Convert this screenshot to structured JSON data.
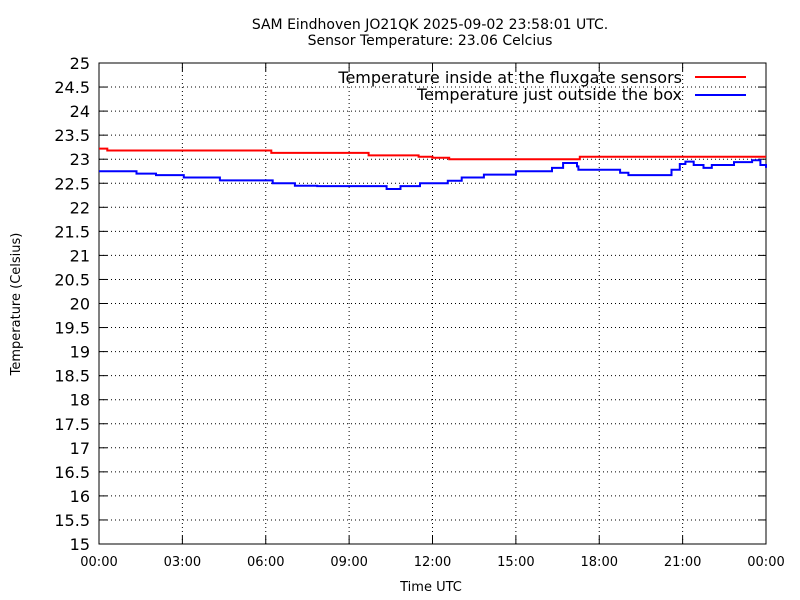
{
  "chart_data": {
    "type": "line",
    "title": "SAM Eindhoven JO21QK 2025-09-02 23:58:01 UTC.",
    "subtitle": "Sensor Temperature: 23.06 Celcius",
    "xlabel": "Time UTC",
    "ylabel": "Temperature (Celsius)",
    "x_unit": "hours UTC",
    "xlim": [
      0,
      24
    ],
    "ylim": [
      15,
      25
    ],
    "grid": true,
    "legend_position": "top-right",
    "x_ticks": [
      0,
      3,
      6,
      9,
      12,
      15,
      18,
      21,
      24
    ],
    "x_tick_labels": [
      "00:00",
      "03:00",
      "06:00",
      "09:00",
      "12:00",
      "15:00",
      "18:00",
      "21:00",
      "00:00"
    ],
    "y_ticks": [
      15,
      15.5,
      16,
      16.5,
      17,
      17.5,
      18,
      18.5,
      19,
      19.5,
      20,
      20.5,
      21,
      21.5,
      22,
      22.5,
      23,
      23.5,
      24,
      24.5,
      25
    ],
    "y_tick_labels": [
      "15",
      "15.5",
      "16",
      "16.5",
      "17",
      "17.5",
      "18",
      "18.5",
      "19",
      "19.5",
      "20",
      "20.5",
      "21",
      "21.5",
      "22",
      "22.5",
      "23",
      "23.5",
      "24",
      "24.5",
      "25"
    ],
    "series": [
      {
        "name": "Temperature inside at the fluxgate sensors",
        "color": "#ff0000",
        "x": [
          0,
          0.3,
          1.5,
          3.0,
          5.5,
          6.2,
          9.0,
          9.7,
          11.5,
          12.0,
          12.6,
          13.8,
          15.0,
          16.5,
          17.3,
          18.5,
          20.0,
          22.0,
          24.0
        ],
        "y": [
          23.22,
          23.18,
          23.18,
          23.18,
          23.18,
          23.13,
          23.13,
          23.08,
          23.05,
          23.03,
          23.0,
          23.0,
          23.0,
          23.0,
          23.05,
          23.05,
          23.05,
          23.05,
          23.05
        ]
      },
      {
        "name": "Temperature just outside the box",
        "color": "#0000ff",
        "x": [
          0,
          1.3,
          1.35,
          2.0,
          2.05,
          3.0,
          3.05,
          4.3,
          4.35,
          6.2,
          6.25,
          7.0,
          7.05,
          7.8,
          7.85,
          10.3,
          10.35,
          10.8,
          10.85,
          11.5,
          11.55,
          12.5,
          12.55,
          13.0,
          13.05,
          13.8,
          13.85,
          14.9,
          15.0,
          15.7,
          16.0,
          16.3,
          16.7,
          16.8,
          17.2,
          17.25,
          18.7,
          18.75,
          19.0,
          19.05,
          20.3,
          20.6,
          20.9,
          21.1,
          21.35,
          21.4,
          21.7,
          21.75,
          22.0,
          22.05,
          22.8,
          22.85,
          23.2,
          23.5,
          23.8,
          24.0
        ],
        "y": [
          22.75,
          22.75,
          22.7,
          22.7,
          22.67,
          22.67,
          22.62,
          22.62,
          22.56,
          22.56,
          22.5,
          22.5,
          22.45,
          22.45,
          22.44,
          22.44,
          22.38,
          22.38,
          22.44,
          22.44,
          22.5,
          22.5,
          22.55,
          22.55,
          22.62,
          22.62,
          22.68,
          22.68,
          22.75,
          22.75,
          22.75,
          22.82,
          22.92,
          22.92,
          22.85,
          22.78,
          22.78,
          22.72,
          22.72,
          22.67,
          22.67,
          22.78,
          22.9,
          22.95,
          22.95,
          22.88,
          22.88,
          22.82,
          22.82,
          22.88,
          22.88,
          22.94,
          22.94,
          22.98,
          22.88,
          22.82
        ]
      }
    ]
  }
}
